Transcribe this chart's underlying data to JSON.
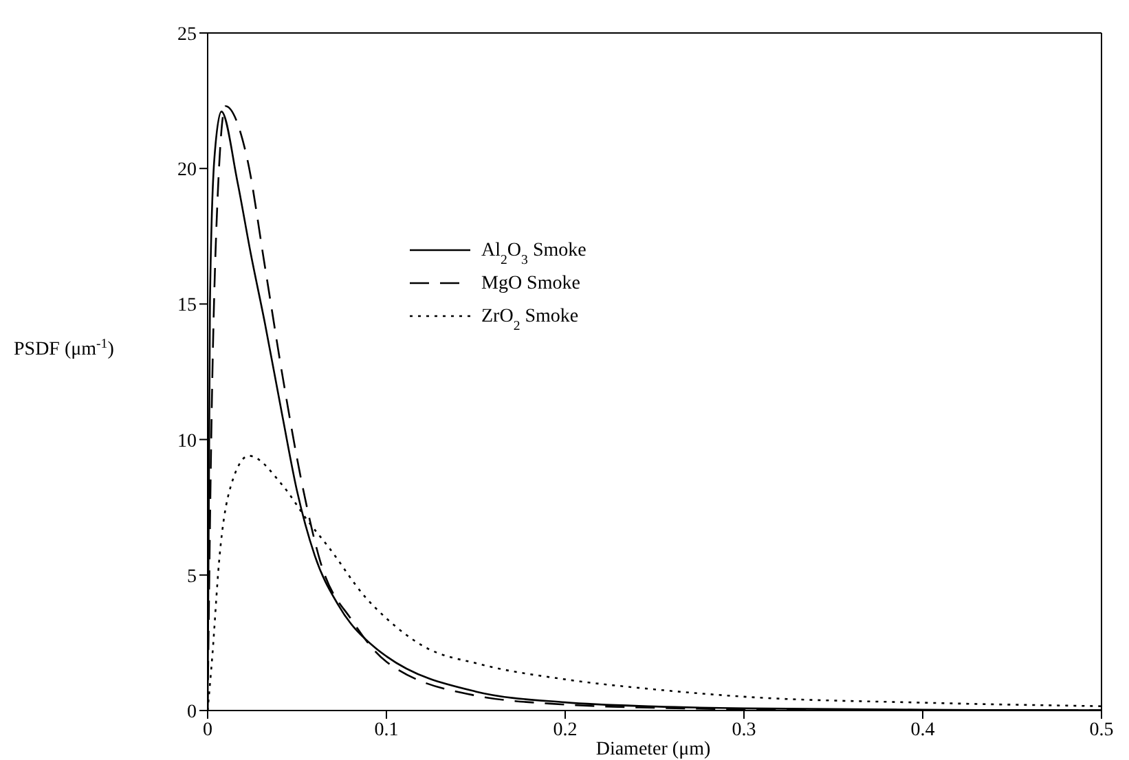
{
  "chart_data": {
    "type": "line",
    "xlabel": "Diameter (μm)",
    "ylabel": "PSDF (μm$^{-1}$)",
    "xlim": [
      0,
      0.5
    ],
    "xticks": [
      0,
      0.1,
      0.2,
      0.3,
      0.4,
      0.5
    ],
    "ylim": [
      0,
      25
    ],
    "yticks": [
      0,
      5,
      10,
      15,
      20,
      25
    ],
    "grid": false,
    "legend": "center",
    "marker": "none",
    "series": [
      {
        "name": "Al$_{2}$O$_{3}$ Smoke",
        "color": "#000000",
        "line_style": "solid",
        "x": [
          0,
          0.0013,
          0.0038,
          0.0077,
          0.0167,
          0.024,
          0.032,
          0.042,
          0.05,
          0.06,
          0.073,
          0.094,
          0.1,
          0.15,
          0.2,
          0.25,
          0.3,
          0.4,
          0.5
        ],
        "values": [
          0,
          15.1,
          20.4,
          22.1,
          19.5,
          16.9,
          14.3,
          10.8,
          8.1,
          5.7,
          3.9,
          2.3,
          2.0,
          0.7,
          0.3,
          0.15,
          0.08,
          0.03,
          0.01
        ]
      },
      {
        "name": "MgO Smoke",
        "color": "#000000",
        "line_style": "dashed",
        "x": [
          0,
          0.002,
          0.005,
          0.01,
          0.022,
          0.032,
          0.042,
          0.053,
          0.063,
          0.081,
          0.1,
          0.15,
          0.2,
          0.25,
          0.3,
          0.4,
          0.5
        ],
        "values": [
          0,
          10,
          18,
          22.3,
          20.4,
          16.4,
          12.3,
          8.3,
          5.5,
          3.3,
          1.8,
          0.55,
          0.22,
          0.1,
          0.05,
          0.02,
          0.01
        ]
      },
      {
        "name": "ZrO$_{2}$ Smoke",
        "color": "#000000",
        "line_style": "dotted",
        "x": [
          0,
          0.0026,
          0.0064,
          0.014,
          0.023,
          0.042,
          0.056,
          0.068,
          0.088,
          0.1,
          0.12,
          0.153,
          0.2,
          0.25,
          0.3,
          0.4,
          0.5
        ],
        "values": [
          0,
          2,
          5.5,
          8.5,
          9.4,
          8.3,
          7.0,
          6.0,
          4.2,
          3.4,
          2.4,
          1.7,
          1.15,
          0.78,
          0.51,
          0.29,
          0.16
        ]
      }
    ]
  }
}
